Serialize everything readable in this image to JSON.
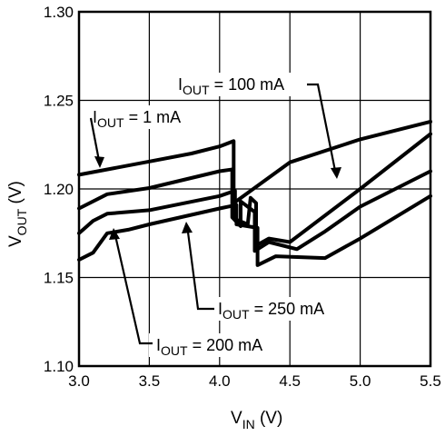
{
  "chart_data": {
    "type": "line",
    "xlabel": {
      "main": "V",
      "sub": "IN",
      "unit": " (V)"
    },
    "ylabel": {
      "main": "V",
      "sub": "OUT",
      "unit": " (V)"
    },
    "xlim": [
      3.0,
      5.5
    ],
    "ylim": [
      1.1,
      1.3
    ],
    "x_ticks": [
      "3.0",
      "3.5",
      "4.0",
      "4.5",
      "5.0",
      "5.5"
    ],
    "y_ticks": [
      "1.10",
      "1.15",
      "1.20",
      "1.25",
      "1.30"
    ],
    "grid": true,
    "series": [
      {
        "name": "IOUT = 1 mA",
        "label": {
          "pre": "I",
          "sub": "OUT",
          "post": " = 1 mA"
        },
        "points": [
          [
            3.0,
            1.208
          ],
          [
            3.5,
            1.2155
          ],
          [
            3.8,
            1.22
          ],
          [
            4.0,
            1.224
          ],
          [
            4.1,
            1.227
          ],
          [
            4.1,
            1.192
          ],
          [
            4.5,
            1.215
          ],
          [
            5.0,
            1.228
          ],
          [
            5.5,
            1.238
          ]
        ]
      },
      {
        "name": "IOUT = 100 mA",
        "label": {
          "pre": "I",
          "sub": "OUT",
          "post": " = 100 mA"
        },
        "points": [
          [
            3.0,
            1.189
          ],
          [
            3.2,
            1.197
          ],
          [
            3.5,
            1.2005
          ],
          [
            4.0,
            1.21
          ],
          [
            4.09,
            1.211
          ],
          [
            4.09,
            1.184
          ],
          [
            4.15,
            1.179
          ],
          [
            4.15,
            1.193
          ],
          [
            4.25,
            1.187
          ],
          [
            4.25,
            1.165
          ],
          [
            4.35,
            1.17
          ],
          [
            4.55,
            1.166
          ],
          [
            4.75,
            1.176
          ],
          [
            5.0,
            1.19
          ],
          [
            5.5,
            1.21
          ]
        ]
      },
      {
        "name": "IOUT = 250 mA",
        "label": {
          "pre": "I",
          "sub": "OUT",
          "post": " = 250 mA"
        },
        "points": [
          [
            3.0,
            1.175
          ],
          [
            3.1,
            1.182
          ],
          [
            3.2,
            1.186
          ],
          [
            3.5,
            1.188
          ],
          [
            4.0,
            1.196
          ],
          [
            4.11,
            1.199
          ],
          [
            4.11,
            1.183
          ],
          [
            4.2,
            1.18
          ],
          [
            4.22,
            1.195
          ],
          [
            4.26,
            1.192
          ],
          [
            4.26,
            1.168
          ],
          [
            4.35,
            1.172
          ],
          [
            4.5,
            1.17
          ],
          [
            5.0,
            1.2
          ],
          [
            5.5,
            1.231
          ]
        ]
      },
      {
        "name": "IOUT = 200 mA",
        "label": {
          "pre": "I",
          "sub": "OUT",
          "post": " = 200 mA"
        },
        "points": [
          [
            3.0,
            1.16
          ],
          [
            3.1,
            1.164
          ],
          [
            3.2,
            1.175
          ],
          [
            3.35,
            1.177
          ],
          [
            3.5,
            1.18
          ],
          [
            4.0,
            1.189
          ],
          [
            4.12,
            1.191
          ],
          [
            4.12,
            1.18
          ],
          [
            4.27,
            1.178
          ],
          [
            4.27,
            1.157
          ],
          [
            4.4,
            1.162
          ],
          [
            4.75,
            1.161
          ],
          [
            5.0,
            1.172
          ],
          [
            5.5,
            1.196
          ]
        ]
      }
    ]
  }
}
